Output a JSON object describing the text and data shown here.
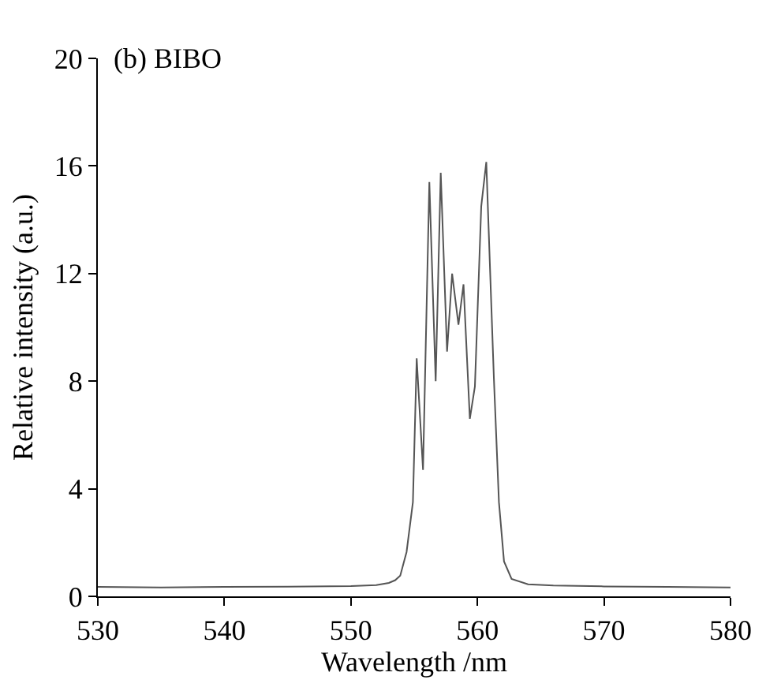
{
  "chart_data": {
    "type": "line",
    "xlabel": "Wavelength /nm",
    "ylabel": "Relative intensity (a.u.)",
    "annotations": [
      "(b) BIBO"
    ],
    "series": [
      {
        "color": "#555555",
        "x": [
          530,
          535,
          540,
          545,
          550,
          552,
          553,
          553.5,
          553.9,
          554.4,
          554.9,
          555.2,
          555.7,
          556.2,
          556.7,
          557.1,
          557.6,
          558.0,
          558.5,
          558.9,
          559.4,
          559.8,
          560.3,
          560.7,
          561.3,
          561.7,
          562.1,
          562.7,
          564,
          566,
          570,
          575,
          580
        ],
        "values": [
          0.35,
          0.33,
          0.35,
          0.36,
          0.38,
          0.42,
          0.5,
          0.6,
          0.77,
          1.65,
          3.5,
          8.85,
          4.7,
          15.4,
          8.0,
          15.75,
          9.1,
          12.0,
          10.1,
          11.6,
          6.6,
          7.8,
          14.5,
          16.15,
          8.1,
          3.5,
          1.3,
          0.65,
          0.45,
          0.4,
          0.37,
          0.35,
          0.33
        ]
      }
    ],
    "xlim": [
      530,
      580
    ],
    "xticks": [
      530,
      540,
      550,
      560,
      570,
      580
    ],
    "ylim": [
      0,
      20
    ],
    "yticks": [
      0,
      4,
      8,
      12,
      16,
      20
    ],
    "grid": false,
    "line_style": "solid",
    "marker": "none"
  }
}
